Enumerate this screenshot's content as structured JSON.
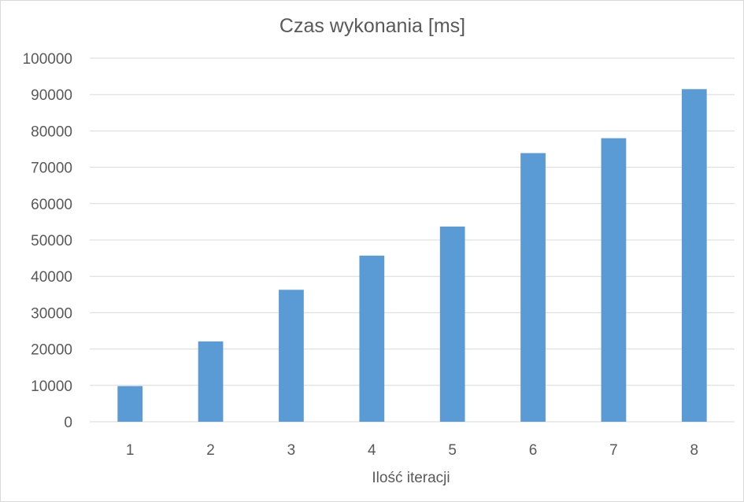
{
  "chart_data": {
    "type": "bar",
    "title": "Czas wykonania [ms]",
    "xlabel": "Ilość iteracji",
    "ylabel": "",
    "categories": [
      "1",
      "2",
      "3",
      "4",
      "5",
      "6",
      "7",
      "8"
    ],
    "values": [
      9800,
      22100,
      36300,
      45700,
      53700,
      73900,
      78000,
      91500
    ],
    "ylim": [
      0,
      100000
    ],
    "yticks": [
      0,
      10000,
      20000,
      30000,
      40000,
      50000,
      60000,
      70000,
      80000,
      90000,
      100000
    ],
    "grid": true,
    "legend": "none",
    "bar_color": "#5b9bd5"
  }
}
